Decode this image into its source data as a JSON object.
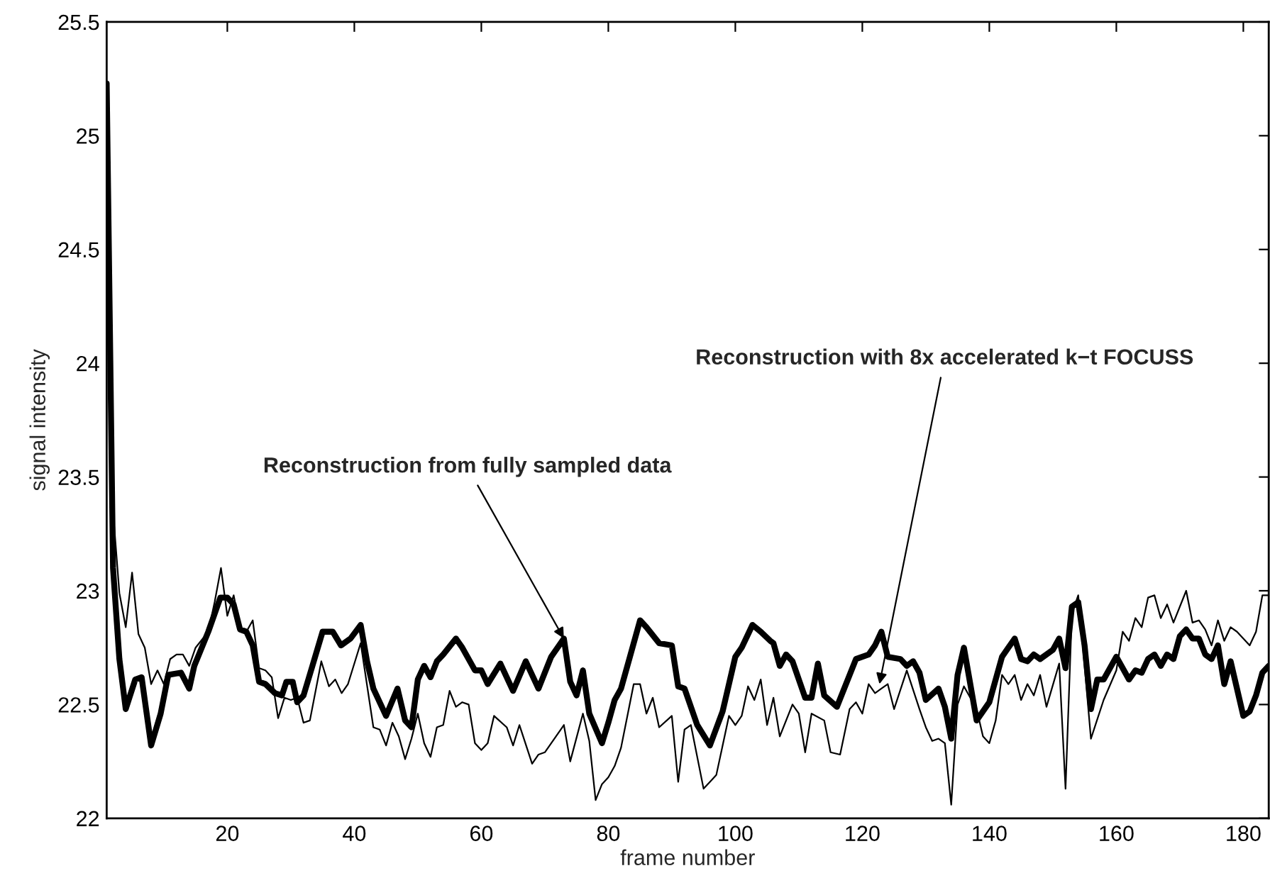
{
  "chart_data": {
    "type": "line",
    "xlabel": "frame number",
    "ylabel": "signal intensity",
    "xlim": [
      1,
      184
    ],
    "ylim": [
      22,
      25.5
    ],
    "xticks": [
      20,
      40,
      60,
      80,
      100,
      120,
      140,
      160,
      180
    ],
    "yticks": [
      22,
      22.5,
      23,
      23.5,
      24,
      24.5,
      25,
      25.5
    ],
    "grid": false,
    "legend": false,
    "marker": "none",
    "line_style": "solid",
    "series": [
      {
        "color": "#000000",
        "x": [
          1,
          2,
          3,
          4,
          5.5,
          6.5,
          7,
          8,
          9.5,
          10.7,
          12.7,
          14,
          14.8,
          17,
          18.9,
          20,
          21,
          22,
          23,
          24,
          25,
          26,
          27.5,
          28.6,
          29.3,
          30.3,
          31,
          32,
          33.4,
          35,
          36.6,
          37.9,
          39.4,
          41,
          42,
          43,
          45,
          46.8,
          48,
          49,
          50,
          51,
          52,
          53,
          54,
          56,
          57,
          59,
          60,
          61,
          63,
          65,
          67,
          69,
          71,
          73,
          74,
          75,
          76,
          77,
          79,
          80,
          81,
          82,
          83.4,
          85,
          86,
          88,
          90,
          91,
          92,
          94,
          96,
          98,
          100,
          101,
          102.7,
          104,
          105.5,
          106,
          107,
          108,
          109,
          111,
          112,
          113,
          114,
          116,
          119,
          121,
          122,
          123,
          124,
          126,
          127,
          128,
          129,
          130,
          132,
          133,
          134,
          135,
          136,
          137,
          138,
          140,
          142,
          143,
          144,
          145,
          146,
          147,
          148,
          150,
          151,
          152,
          153,
          154,
          155,
          156,
          157,
          158,
          160,
          162,
          163,
          164,
          165,
          166,
          167,
          168,
          169,
          170,
          171,
          172,
          173,
          174,
          175,
          176,
          177,
          178,
          180,
          181,
          182,
          183,
          184
        ],
        "values": [
          25.23,
          23.1,
          22.7,
          22.48,
          22.61,
          22.62,
          22.52,
          22.32,
          22.46,
          22.63,
          22.64,
          22.57,
          22.67,
          22.82,
          22.97,
          22.97,
          22.94,
          22.83,
          22.82,
          22.76,
          22.6,
          22.59,
          22.55,
          22.54,
          22.6,
          22.6,
          22.51,
          22.54,
          22.67,
          22.82,
          22.82,
          22.76,
          22.79,
          22.85,
          22.69,
          22.57,
          22.45,
          22.57,
          22.43,
          22.4,
          22.61,
          22.67,
          22.62,
          22.69,
          22.72,
          22.79,
          22.75,
          22.65,
          22.65,
          22.59,
          22.68,
          22.56,
          22.69,
          22.57,
          22.71,
          22.79,
          22.6,
          22.54,
          22.65,
          22.46,
          22.33,
          22.42,
          22.52,
          22.57,
          22.71,
          22.87,
          22.84,
          22.77,
          22.76,
          22.58,
          22.57,
          22.41,
          22.32,
          22.47,
          22.71,
          22.75,
          22.85,
          22.82,
          22.78,
          22.77,
          22.67,
          22.72,
          22.69,
          22.53,
          22.53,
          22.68,
          22.54,
          22.49,
          22.7,
          22.72,
          22.76,
          22.82,
          22.71,
          22.7,
          22.67,
          22.69,
          22.64,
          22.52,
          22.57,
          22.49,
          22.35,
          22.63,
          22.75,
          22.59,
          22.43,
          22.51,
          22.71,
          22.75,
          22.79,
          22.7,
          22.69,
          22.72,
          22.7,
          22.74,
          22.79,
          22.66,
          22.93,
          22.95,
          22.76,
          22.48,
          22.61,
          22.61,
          22.71,
          22.61,
          22.65,
          22.64,
          22.7,
          22.72,
          22.67,
          22.72,
          22.7,
          22.8,
          22.83,
          22.79,
          22.79,
          22.72,
          22.7,
          22.76,
          22.59,
          22.69,
          22.45,
          22.47,
          22.54,
          22.64,
          22.67
        ]
      },
      {
        "color": "#000000",
        "x": [
          1,
          2,
          3,
          4,
          5,
          6,
          7,
          8,
          9,
          10,
          11,
          12,
          13,
          14,
          15,
          17,
          18,
          19,
          20,
          21,
          22,
          23,
          24,
          25,
          26,
          27,
          28,
          29,
          30,
          31,
          32,
          33,
          34.8,
          36,
          37,
          38,
          39,
          41,
          43,
          44,
          45,
          46,
          47,
          48,
          49,
          50,
          51,
          52,
          53,
          54,
          55,
          56,
          57,
          58,
          59,
          60,
          61,
          62,
          64,
          65,
          66,
          68,
          69,
          70,
          73,
          74,
          76,
          77,
          78,
          79,
          80,
          81,
          82,
          83,
          84,
          85,
          86,
          87,
          88,
          90,
          91,
          92,
          93,
          95,
          96,
          97,
          99,
          100,
          101,
          102,
          103,
          104,
          105,
          106,
          107,
          109,
          110,
          111,
          112,
          114,
          115,
          116.5,
          118,
          119,
          120,
          121,
          122,
          123,
          124,
          125,
          127,
          129,
          130,
          131,
          132,
          133,
          134,
          135,
          136,
          137,
          138,
          139,
          140,
          141,
          142,
          143,
          144,
          145,
          146,
          147,
          148,
          149,
          151,
          152,
          153,
          154,
          155,
          156,
          158,
          160,
          161,
          162,
          163,
          164,
          165,
          166,
          167,
          168,
          169,
          171,
          172,
          173,
          174,
          175,
          176,
          177,
          178,
          179,
          181,
          182,
          183,
          184
        ],
        "values": [
          25.23,
          23.35,
          22.99,
          22.84,
          23.08,
          22.81,
          22.75,
          22.59,
          22.65,
          22.59,
          22.7,
          22.72,
          22.72,
          22.67,
          22.75,
          22.82,
          22.95,
          23.1,
          22.89,
          22.98,
          22.84,
          22.82,
          22.87,
          22.66,
          22.65,
          22.62,
          22.44,
          22.53,
          22.52,
          22.53,
          22.42,
          22.43,
          22.69,
          22.58,
          22.61,
          22.55,
          22.59,
          22.77,
          22.4,
          22.39,
          22.32,
          22.42,
          22.36,
          22.26,
          22.35,
          22.46,
          22.33,
          22.27,
          22.4,
          22.41,
          22.56,
          22.49,
          22.51,
          22.5,
          22.33,
          22.3,
          22.33,
          22.45,
          22.4,
          22.32,
          22.41,
          22.24,
          22.28,
          22.29,
          22.41,
          22.25,
          22.46,
          22.34,
          22.08,
          22.15,
          22.18,
          22.23,
          22.31,
          22.45,
          22.59,
          22.59,
          22.46,
          22.53,
          22.4,
          22.45,
          22.16,
          22.39,
          22.41,
          22.13,
          22.16,
          22.19,
          22.45,
          22.41,
          22.45,
          22.58,
          22.52,
          22.61,
          22.41,
          22.53,
          22.36,
          22.5,
          22.46,
          22.29,
          22.46,
          22.43,
          22.29,
          22.28,
          22.48,
          22.51,
          22.46,
          22.59,
          22.55,
          22.57,
          22.59,
          22.48,
          22.65,
          22.48,
          22.4,
          22.34,
          22.35,
          22.33,
          22.06,
          22.5,
          22.58,
          22.53,
          22.48,
          22.36,
          22.33,
          22.43,
          22.63,
          22.59,
          22.63,
          22.52,
          22.59,
          22.54,
          22.63,
          22.49,
          22.68,
          22.13,
          22.9,
          22.98,
          22.67,
          22.35,
          22.52,
          22.65,
          22.82,
          22.78,
          22.88,
          22.84,
          22.97,
          22.98,
          22.88,
          22.94,
          22.86,
          23.0,
          22.86,
          22.87,
          22.83,
          22.76,
          22.87,
          22.78,
          22.84,
          22.82,
          22.76,
          22.82,
          22.98,
          22.98
        ]
      }
    ],
    "annotations": [
      {
        "text": "Reconstruction from fully sampled data",
        "x": 73,
        "y": 22.79
      },
      {
        "text": "Reconstruction with 8x accelerated k−t FOCUSS",
        "x": 122.7,
        "y": 22.59
      }
    ]
  }
}
